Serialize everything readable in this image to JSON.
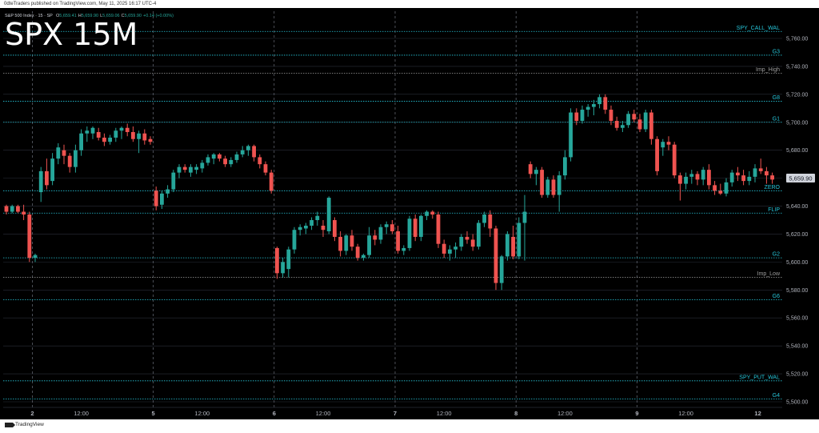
{
  "header": {
    "publisher_line": "0dteTraders published on TradingView.com, May 11, 2025 16:17 UTC-4",
    "symbol_line": "S&P 500 Index · 15 · SP",
    "ohlc": {
      "o_label": "O",
      "o": "5,659.41",
      "h_label": "H",
      "h": "5,659.90",
      "l_label": "L",
      "l": "5,659.06",
      "c_label": "C",
      "c": "5,659.90",
      "change": "+0.14 (+0.00%)"
    },
    "title": "SPX 15M"
  },
  "footer": {
    "brand": "TradingView"
  },
  "colors": {
    "background": "#000000",
    "bull": "#26a69a",
    "bear": "#ef5350",
    "level_cyan": "#26c6da",
    "level_gray": "#9e9e9e",
    "grid": "#2a2e39",
    "axis_text": "#b2b5be",
    "price_tag_bg": "#d1d4dc"
  },
  "chart_data": {
    "type": "candlestick",
    "title": "SPX 15M",
    "xlabel": "",
    "ylabel": "",
    "ylim": [
      5496,
      5776
    ],
    "y_ticks": [
      5500,
      5520,
      5540,
      5560,
      5580,
      5600,
      5620,
      5640,
      5660,
      5680,
      5700,
      5720,
      5740,
      5760
    ],
    "y_tick_labels": [
      "5,500.00",
      "5,520.00",
      "5,540.00",
      "5,560.00",
      "5,580.00",
      "5,600.00",
      "5,620.00",
      "5,640.00",
      "5,660.00",
      "5,680.00",
      "5,700.00",
      "5,720.00",
      "5,740.00",
      "5,760.00"
    ],
    "x_tick_labels": [
      {
        "label": "2",
        "bar": 5
      },
      {
        "label": "12:00",
        "bar": 13
      },
      {
        "label": "5",
        "bar": 26
      },
      {
        "label": "12:00",
        "bar": 34
      },
      {
        "label": "6",
        "bar": 47
      },
      {
        "label": "12:00",
        "bar": 55
      },
      {
        "label": "7",
        "bar": 68
      },
      {
        "label": "12:00",
        "bar": 76
      },
      {
        "label": "8",
        "bar": 89
      },
      {
        "label": "12:00",
        "bar": 97
      },
      {
        "label": "9",
        "bar": 110
      },
      {
        "label": "12:00",
        "bar": 118
      },
      {
        "label": "12",
        "bar": 131
      }
    ],
    "session_breaks": [
      5,
      26,
      47,
      68,
      89,
      110
    ],
    "last_price": "5,659.90",
    "levels": [
      {
        "name": "SPY_CALL_WALL",
        "label": "SPY_CALL_WAL",
        "price": 5765,
        "style": "cyan"
      },
      {
        "name": "G3",
        "label": "G3",
        "price": 5748,
        "style": "cyan"
      },
      {
        "name": "Imp_High",
        "label": "Imp_High",
        "price": 5735,
        "style": "gray"
      },
      {
        "name": "G8",
        "label": "G8",
        "price": 5715,
        "style": "cyan"
      },
      {
        "name": "G1",
        "label": "G1",
        "price": 5700,
        "style": "cyan"
      },
      {
        "name": "ZERO",
        "label": "ZERO",
        "price": 5651,
        "style": "cyan"
      },
      {
        "name": "FLIP",
        "label": "FLIP",
        "price": 5635,
        "style": "cyan"
      },
      {
        "name": "G2",
        "label": "G2",
        "price": 5603,
        "style": "cyan"
      },
      {
        "name": "Imp_Low",
        "label": "Imp_Low",
        "price": 5589,
        "style": "gray"
      },
      {
        "name": "G6",
        "label": "G6",
        "price": 5573,
        "style": "cyan"
      },
      {
        "name": "SPY_PUT_WALL",
        "label": "SPY_PUT_WAL",
        "price": 5515,
        "style": "cyan"
      },
      {
        "name": "G4",
        "label": "G4",
        "price": 5502,
        "style": "cyan"
      }
    ],
    "candles": [
      {
        "o": 5640,
        "h": 5641,
        "l": 5634,
        "c": 5636
      },
      {
        "o": 5636,
        "h": 5641,
        "l": 5635,
        "c": 5640
      },
      {
        "o": 5640,
        "h": 5641,
        "l": 5635,
        "c": 5636
      },
      {
        "o": 5636,
        "h": 5641,
        "l": 5630,
        "c": 5634
      },
      {
        "o": 5634,
        "h": 5636,
        "l": 5600,
        "c": 5603
      },
      {
        "o": 5603,
        "h": 5606,
        "l": 5600,
        "c": 5605
      },
      {
        "o": 5650,
        "h": 5668,
        "l": 5643,
        "c": 5665
      },
      {
        "o": 5665,
        "h": 5674,
        "l": 5652,
        "c": 5655
      },
      {
        "o": 5658,
        "h": 5678,
        "l": 5655,
        "c": 5674
      },
      {
        "o": 5674,
        "h": 5685,
        "l": 5670,
        "c": 5682
      },
      {
        "o": 5680,
        "h": 5684,
        "l": 5670,
        "c": 5676
      },
      {
        "o": 5676,
        "h": 5678,
        "l": 5664,
        "c": 5668
      },
      {
        "o": 5668,
        "h": 5684,
        "l": 5664,
        "c": 5680
      },
      {
        "o": 5680,
        "h": 5695,
        "l": 5676,
        "c": 5692
      },
      {
        "o": 5692,
        "h": 5697,
        "l": 5686,
        "c": 5694
      },
      {
        "o": 5692,
        "h": 5697,
        "l": 5688,
        "c": 5696
      },
      {
        "o": 5693,
        "h": 5696,
        "l": 5687,
        "c": 5689
      },
      {
        "o": 5689,
        "h": 5692,
        "l": 5683,
        "c": 5686
      },
      {
        "o": 5686,
        "h": 5691,
        "l": 5684,
        "c": 5689
      },
      {
        "o": 5689,
        "h": 5696,
        "l": 5686,
        "c": 5694
      },
      {
        "o": 5694,
        "h": 5697,
        "l": 5688,
        "c": 5696
      },
      {
        "o": 5696,
        "h": 5699,
        "l": 5690,
        "c": 5693
      },
      {
        "o": 5693,
        "h": 5697,
        "l": 5686,
        "c": 5688
      },
      {
        "o": 5688,
        "h": 5694,
        "l": 5678,
        "c": 5692
      },
      {
        "o": 5692,
        "h": 5695,
        "l": 5684,
        "c": 5687
      },
      {
        "o": 5688,
        "h": 5690,
        "l": 5684,
        "c": 5686
      },
      {
        "o": 5651,
        "h": 5654,
        "l": 5637,
        "c": 5640
      },
      {
        "o": 5641,
        "h": 5651,
        "l": 5638,
        "c": 5649
      },
      {
        "o": 5649,
        "h": 5655,
        "l": 5646,
        "c": 5652
      },
      {
        "o": 5652,
        "h": 5666,
        "l": 5650,
        "c": 5664
      },
      {
        "o": 5664,
        "h": 5670,
        "l": 5660,
        "c": 5668
      },
      {
        "o": 5668,
        "h": 5670,
        "l": 5664,
        "c": 5666
      },
      {
        "o": 5664,
        "h": 5670,
        "l": 5661,
        "c": 5668
      },
      {
        "o": 5666,
        "h": 5670,
        "l": 5663,
        "c": 5668
      },
      {
        "o": 5667,
        "h": 5673,
        "l": 5664,
        "c": 5671
      },
      {
        "o": 5671,
        "h": 5677,
        "l": 5669,
        "c": 5675
      },
      {
        "o": 5674,
        "h": 5678,
        "l": 5670,
        "c": 5677
      },
      {
        "o": 5677,
        "h": 5678,
        "l": 5672,
        "c": 5674
      },
      {
        "o": 5674,
        "h": 5676,
        "l": 5668,
        "c": 5670
      },
      {
        "o": 5670,
        "h": 5675,
        "l": 5668,
        "c": 5673
      },
      {
        "o": 5673,
        "h": 5679,
        "l": 5671,
        "c": 5677
      },
      {
        "o": 5677,
        "h": 5683,
        "l": 5675,
        "c": 5680
      },
      {
        "o": 5680,
        "h": 5684,
        "l": 5676,
        "c": 5683
      },
      {
        "o": 5683,
        "h": 5684,
        "l": 5672,
        "c": 5675
      },
      {
        "o": 5675,
        "h": 5677,
        "l": 5667,
        "c": 5670
      },
      {
        "o": 5670,
        "h": 5672,
        "l": 5662,
        "c": 5664
      },
      {
        "o": 5664,
        "h": 5666,
        "l": 5649,
        "c": 5651
      },
      {
        "o": 5610,
        "h": 5611,
        "l": 5588,
        "c": 5592
      },
      {
        "o": 5592,
        "h": 5603,
        "l": 5589,
        "c": 5600
      },
      {
        "o": 5595,
        "h": 5611,
        "l": 5589,
        "c": 5609
      },
      {
        "o": 5609,
        "h": 5625,
        "l": 5606,
        "c": 5623
      },
      {
        "o": 5623,
        "h": 5627,
        "l": 5619,
        "c": 5625
      },
      {
        "o": 5624,
        "h": 5628,
        "l": 5620,
        "c": 5626
      },
      {
        "o": 5626,
        "h": 5632,
        "l": 5623,
        "c": 5630
      },
      {
        "o": 5630,
        "h": 5636,
        "l": 5626,
        "c": 5633
      },
      {
        "o": 5626,
        "h": 5630,
        "l": 5618,
        "c": 5623
      },
      {
        "o": 5622,
        "h": 5647,
        "l": 5620,
        "c": 5646
      },
      {
        "o": 5630,
        "h": 5632,
        "l": 5615,
        "c": 5618
      },
      {
        "o": 5618,
        "h": 5622,
        "l": 5604,
        "c": 5608
      },
      {
        "o": 5608,
        "h": 5620,
        "l": 5605,
        "c": 5619
      },
      {
        "o": 5619,
        "h": 5623,
        "l": 5608,
        "c": 5611
      },
      {
        "o": 5611,
        "h": 5613,
        "l": 5601,
        "c": 5603
      },
      {
        "o": 5603,
        "h": 5606,
        "l": 5601,
        "c": 5605
      },
      {
        "o": 5605,
        "h": 5625,
        "l": 5603,
        "c": 5619
      },
      {
        "o": 5619,
        "h": 5623,
        "l": 5612,
        "c": 5616
      },
      {
        "o": 5616,
        "h": 5627,
        "l": 5613,
        "c": 5625
      },
      {
        "o": 5625,
        "h": 5629,
        "l": 5620,
        "c": 5627
      },
      {
        "o": 5627,
        "h": 5630,
        "l": 5620,
        "c": 5622
      },
      {
        "o": 5622,
        "h": 5626,
        "l": 5606,
        "c": 5608
      },
      {
        "o": 5608,
        "h": 5612,
        "l": 5605,
        "c": 5610
      },
      {
        "o": 5610,
        "h": 5633,
        "l": 5608,
        "c": 5631
      },
      {
        "o": 5631,
        "h": 5634,
        "l": 5615,
        "c": 5618
      },
      {
        "o": 5618,
        "h": 5634,
        "l": 5615,
        "c": 5633
      },
      {
        "o": 5633,
        "h": 5637,
        "l": 5630,
        "c": 5636
      },
      {
        "o": 5636,
        "h": 5637,
        "l": 5631,
        "c": 5634
      },
      {
        "o": 5634,
        "h": 5636,
        "l": 5610,
        "c": 5613
      },
      {
        "o": 5613,
        "h": 5616,
        "l": 5603,
        "c": 5606
      },
      {
        "o": 5606,
        "h": 5612,
        "l": 5601,
        "c": 5609
      },
      {
        "o": 5609,
        "h": 5614,
        "l": 5603,
        "c": 5611
      },
      {
        "o": 5611,
        "h": 5620,
        "l": 5608,
        "c": 5618
      },
      {
        "o": 5618,
        "h": 5622,
        "l": 5613,
        "c": 5616
      },
      {
        "o": 5616,
        "h": 5620,
        "l": 5608,
        "c": 5611
      },
      {
        "o": 5611,
        "h": 5630,
        "l": 5609,
        "c": 5628
      },
      {
        "o": 5628,
        "h": 5636,
        "l": 5625,
        "c": 5634
      },
      {
        "o": 5634,
        "h": 5637,
        "l": 5618,
        "c": 5624
      },
      {
        "o": 5624,
        "h": 5626,
        "l": 5580,
        "c": 5585
      },
      {
        "o": 5585,
        "h": 5605,
        "l": 5580,
        "c": 5604
      },
      {
        "o": 5604,
        "h": 5622,
        "l": 5601,
        "c": 5620
      },
      {
        "o": 5618,
        "h": 5626,
        "l": 5602,
        "c": 5604
      },
      {
        "o": 5604,
        "h": 5632,
        "l": 5602,
        "c": 5628
      },
      {
        "o": 5628,
        "h": 5648,
        "l": 5601,
        "c": 5636
      },
      {
        "o": 5670,
        "h": 5672,
        "l": 5660,
        "c": 5663
      },
      {
        "o": 5663,
        "h": 5668,
        "l": 5655,
        "c": 5666
      },
      {
        "o": 5666,
        "h": 5668,
        "l": 5646,
        "c": 5648
      },
      {
        "o": 5648,
        "h": 5661,
        "l": 5646,
        "c": 5659
      },
      {
        "o": 5659,
        "h": 5662,
        "l": 5646,
        "c": 5648
      },
      {
        "o": 5648,
        "h": 5665,
        "l": 5636,
        "c": 5662
      },
      {
        "o": 5662,
        "h": 5680,
        "l": 5659,
        "c": 5675
      },
      {
        "o": 5675,
        "h": 5710,
        "l": 5672,
        "c": 5707
      },
      {
        "o": 5707,
        "h": 5710,
        "l": 5698,
        "c": 5701
      },
      {
        "o": 5701,
        "h": 5712,
        "l": 5699,
        "c": 5709
      },
      {
        "o": 5709,
        "h": 5713,
        "l": 5704,
        "c": 5711
      },
      {
        "o": 5711,
        "h": 5716,
        "l": 5705,
        "c": 5713
      },
      {
        "o": 5713,
        "h": 5720,
        "l": 5710,
        "c": 5718
      },
      {
        "o": 5718,
        "h": 5720,
        "l": 5706,
        "c": 5709
      },
      {
        "o": 5709,
        "h": 5712,
        "l": 5698,
        "c": 5701
      },
      {
        "o": 5701,
        "h": 5704,
        "l": 5694,
        "c": 5696
      },
      {
        "o": 5696,
        "h": 5701,
        "l": 5693,
        "c": 5698
      },
      {
        "o": 5698,
        "h": 5708,
        "l": 5696,
        "c": 5706
      },
      {
        "o": 5706,
        "h": 5709,
        "l": 5700,
        "c": 5702
      },
      {
        "o": 5702,
        "h": 5706,
        "l": 5693,
        "c": 5695
      },
      {
        "o": 5695,
        "h": 5709,
        "l": 5693,
        "c": 5707
      },
      {
        "o": 5707,
        "h": 5709,
        "l": 5684,
        "c": 5688
      },
      {
        "o": 5688,
        "h": 5690,
        "l": 5662,
        "c": 5665
      },
      {
        "o": 5682,
        "h": 5688,
        "l": 5676,
        "c": 5686
      },
      {
        "o": 5686,
        "h": 5690,
        "l": 5680,
        "c": 5684
      },
      {
        "o": 5684,
        "h": 5686,
        "l": 5660,
        "c": 5662
      },
      {
        "o": 5662,
        "h": 5664,
        "l": 5644,
        "c": 5656
      },
      {
        "o": 5656,
        "h": 5664,
        "l": 5652,
        "c": 5661
      },
      {
        "o": 5661,
        "h": 5666,
        "l": 5656,
        "c": 5663
      },
      {
        "o": 5663,
        "h": 5665,
        "l": 5655,
        "c": 5659
      },
      {
        "o": 5659,
        "h": 5668,
        "l": 5655,
        "c": 5666
      },
      {
        "o": 5666,
        "h": 5670,
        "l": 5652,
        "c": 5655
      },
      {
        "o": 5655,
        "h": 5658,
        "l": 5648,
        "c": 5651
      },
      {
        "o": 5651,
        "h": 5656,
        "l": 5648,
        "c": 5649
      },
      {
        "o": 5649,
        "h": 5660,
        "l": 5647,
        "c": 5657
      },
      {
        "o": 5657,
        "h": 5666,
        "l": 5654,
        "c": 5664
      },
      {
        "o": 5664,
        "h": 5668,
        "l": 5658,
        "c": 5662
      },
      {
        "o": 5662,
        "h": 5666,
        "l": 5655,
        "c": 5658
      },
      {
        "o": 5658,
        "h": 5665,
        "l": 5655,
        "c": 5661
      },
      {
        "o": 5661,
        "h": 5670,
        "l": 5657,
        "c": 5667
      },
      {
        "o": 5667,
        "h": 5674,
        "l": 5663,
        "c": 5665
      },
      {
        "o": 5665,
        "h": 5668,
        "l": 5656,
        "c": 5662
      },
      {
        "o": 5662,
        "h": 5664,
        "l": 5656,
        "c": 5659
      }
    ]
  }
}
